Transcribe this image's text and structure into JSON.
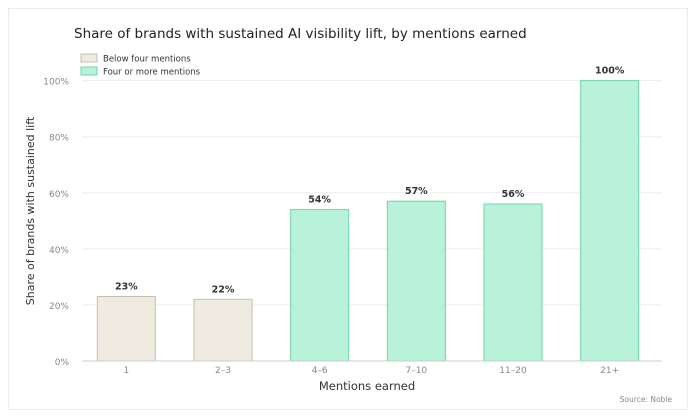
{
  "chart_data": {
    "type": "bar",
    "title": "Share of brands with sustained AI visibility lift, by mentions earned",
    "xlabel": "Mentions earned",
    "ylabel": "Share of brands with sustained lift",
    "categories": [
      "1",
      "2–3",
      "4–6",
      "7–10",
      "11–20",
      "21+"
    ],
    "values": [
      23,
      22,
      54,
      57,
      56,
      100
    ],
    "value_labels": [
      "23%",
      "22%",
      "54%",
      "57%",
      "56%",
      "100%"
    ],
    "groups": [
      "below",
      "below",
      "four_plus",
      "four_plus",
      "four_plus",
      "four_plus"
    ],
    "legend": [
      {
        "key": "below",
        "label": "Below four mentions",
        "color": "#efebe0",
        "edge": "#c6c0ae"
      },
      {
        "key": "four_plus",
        "label": "Four or more mentions",
        "color": "#b8f2da",
        "edge": "#6fd4a8"
      }
    ],
    "legend_position": "top-left",
    "ylim": [
      0,
      112
    ],
    "yticks": [
      0,
      20,
      40,
      60,
      80,
      100
    ],
    "ytick_labels": [
      "0%",
      "20%",
      "40%",
      "60%",
      "80%",
      "100%"
    ],
    "grid": true,
    "source": "Source: Noble"
  }
}
